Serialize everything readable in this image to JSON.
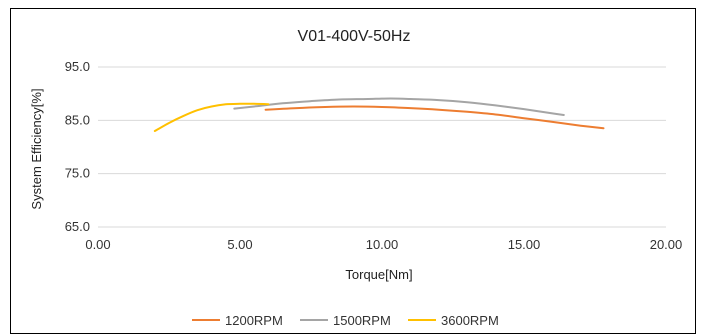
{
  "chart_data": {
    "type": "line",
    "title": "V01-400V-50Hz",
    "xlabel": "Torque[Nm]",
    "ylabel": "System Efficiency[%]",
    "xlim": [
      0,
      20
    ],
    "ylim": [
      65,
      95
    ],
    "x_ticks": [
      "0.00",
      "5.00",
      "10.00",
      "15.00",
      "20.00"
    ],
    "y_ticks": [
      "65.0",
      "75.0",
      "85.0",
      "95.0"
    ],
    "grid": "horizontal",
    "legend_position": "bottom",
    "series": [
      {
        "name": "1200RPM",
        "color": "#ED7D31",
        "x": [
          5.9,
          7.0,
          8.0,
          9.0,
          10.0,
          11.0,
          12.0,
          13.0,
          14.0,
          15.0,
          16.0,
          17.0,
          17.8
        ],
        "y": [
          87.0,
          87.3,
          87.5,
          87.6,
          87.5,
          87.3,
          87.0,
          86.6,
          86.1,
          85.4,
          84.7,
          84.0,
          83.5
        ]
      },
      {
        "name": "1500RPM",
        "color": "#A5A5A5",
        "x": [
          4.8,
          5.5,
          6.5,
          7.5,
          8.5,
          9.5,
          10.3,
          11.0,
          12.0,
          13.0,
          14.0,
          15.0,
          16.0,
          16.4
        ],
        "y": [
          87.2,
          87.6,
          88.2,
          88.6,
          88.9,
          89.0,
          89.1,
          89.0,
          88.8,
          88.4,
          87.8,
          87.1,
          86.3,
          86.0
        ]
      },
      {
        "name": "3600RPM",
        "color": "#FFC000",
        "x": [
          2.0,
          2.5,
          3.0,
          3.5,
          4.0,
          4.5,
          5.0,
          5.5,
          6.0
        ],
        "y": [
          83.0,
          84.5,
          85.8,
          86.9,
          87.6,
          88.0,
          88.1,
          88.1,
          88.0
        ]
      }
    ]
  }
}
